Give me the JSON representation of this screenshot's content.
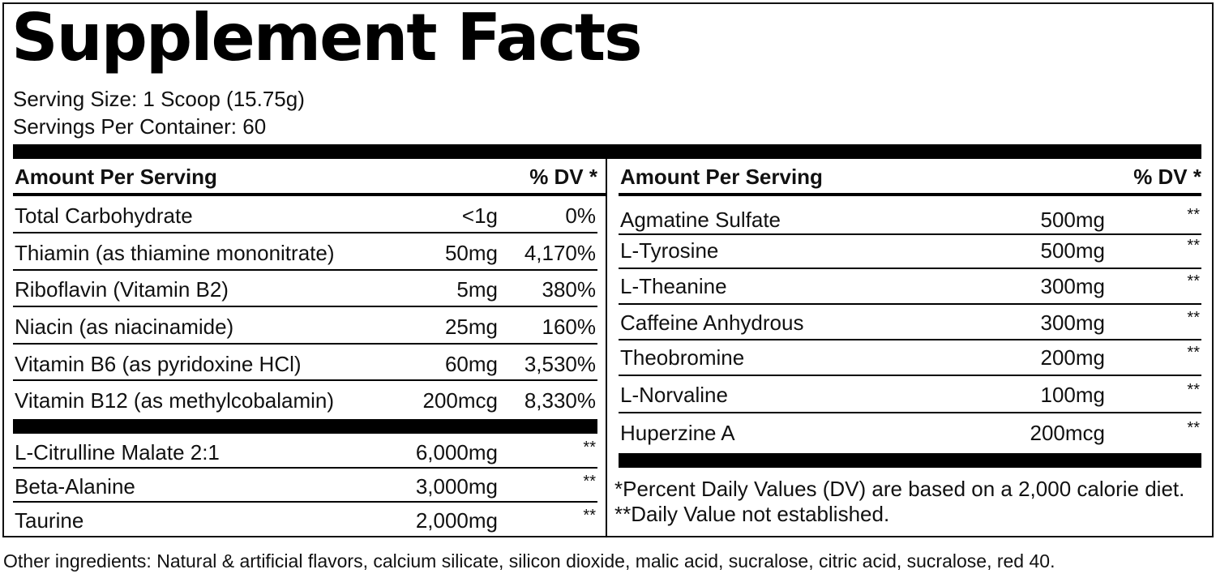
{
  "title": "Supplement Facts",
  "serving_size": "Serving Size: 1 Scoop (15.75g)",
  "servings_per_container": "Servings Per Container: 60",
  "left": {
    "header_amount": "Amount Per Serving",
    "header_dv": "% DV *",
    "vitamins": [
      {
        "name": "Total Carbohydrate",
        "amount": "<1g",
        "dv": "0%"
      },
      {
        "name": "Thiamin (as thiamine mononitrate)",
        "amount": "50mg",
        "dv": "4,170%"
      },
      {
        "name": "Riboflavin (Vitamin B2)",
        "amount": "5mg",
        "dv": "380%"
      },
      {
        "name": "Niacin (as niacinamide)",
        "amount": "25mg",
        "dv": "160%"
      },
      {
        "name": "Vitamin B6 (as pyridoxine HCl)",
        "amount": "60mg",
        "dv": "3,530%"
      },
      {
        "name": "Vitamin B12 (as methylcobalamin)",
        "amount": "200mcg",
        "dv": "8,330%"
      }
    ],
    "others": [
      {
        "name": "L-Citrulline Malate 2:1",
        "amount": "6,000mg",
        "dv": "**"
      },
      {
        "name": "Beta-Alanine",
        "amount": "3,000mg",
        "dv": "**"
      },
      {
        "name": "Taurine",
        "amount": "2,000mg",
        "dv": "**"
      }
    ]
  },
  "right": {
    "header_amount": "Amount Per Serving",
    "header_dv": "% DV *",
    "items": [
      {
        "name": "Agmatine Sulfate",
        "amount": "500mg",
        "dv": "**"
      },
      {
        "name": "L-Tyrosine",
        "amount": "500mg",
        "dv": "**"
      },
      {
        "name": "L-Theanine",
        "amount": "300mg",
        "dv": "**"
      },
      {
        "name": "Caffeine Anhydrous",
        "amount": "300mg",
        "dv": "**"
      },
      {
        "name": "Theobromine",
        "amount": "200mg",
        "dv": "**"
      },
      {
        "name": "L-Norvaline",
        "amount": "100mg",
        "dv": "**"
      },
      {
        "name": "Huperzine A",
        "amount": "200mcg",
        "dv": "**"
      }
    ],
    "footnote_1": "*Percent Daily Values (DV) are based on a 2,000 calorie diet.",
    "footnote_2": "**Daily Value not established."
  },
  "other_ingredients": "Other ingredients: Natural & artificial flavors, calcium silicate, silicon dioxide, malic acid, sucralose, citric acid, sucralose, red 40."
}
